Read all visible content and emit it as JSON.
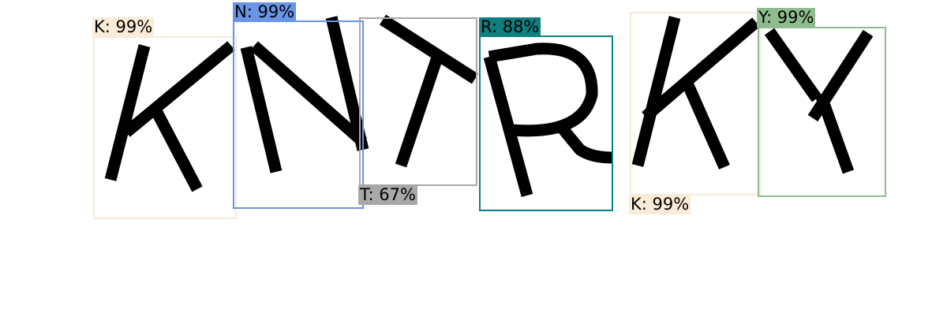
{
  "image": {
    "text": "KNTRKY",
    "detections": [
      {
        "letter": "K",
        "label": "K: 99%",
        "color": "#fbebd7",
        "border": "#f4ead9",
        "label_pos": "top"
      },
      {
        "letter": "N",
        "label": "N: 99%",
        "color": "#6a94e6",
        "border": "#6a94e6",
        "label_pos": "top"
      },
      {
        "letter": "T",
        "label": "T: 67%",
        "color": "#a8a8a8",
        "border": "#a8a8a8",
        "label_pos": "bottom"
      },
      {
        "letter": "R",
        "label": "R: 88%",
        "color": "#0d8080",
        "border": "#0d8080",
        "label_pos": "top"
      },
      {
        "letter": "K",
        "label": "K: 99%",
        "color": "#fbebd7",
        "border": "#f4ead9",
        "label_pos": "bottom"
      },
      {
        "letter": "Y",
        "label": "Y: 99%",
        "color": "#8fbc8f",
        "border": "#8fbc8f",
        "label_pos": "top"
      }
    ]
  }
}
